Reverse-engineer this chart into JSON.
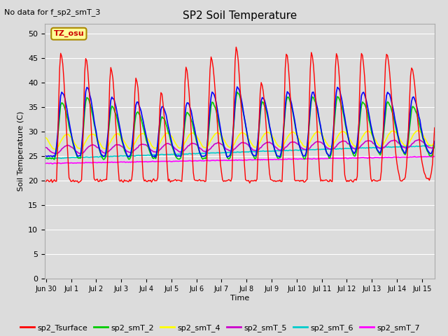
{
  "title": "SP2 Soil Temperature",
  "no_data_text": "No data for f_sp2_smT_3",
  "tz_label": "TZ_osu",
  "ylabel": "Soil Temperature (C)",
  "xlabel": "Time",
  "xlim_days": [
    -0.05,
    15.5
  ],
  "ylim": [
    0,
    52
  ],
  "yticks": [
    0,
    5,
    10,
    15,
    20,
    25,
    30,
    35,
    40,
    45,
    50
  ],
  "xtick_labels": [
    "Jun 30",
    "Jul 1",
    "Jul 2",
    "Jul 3",
    "Jul 4",
    "Jul 5",
    "Jul 6",
    "Jul 7",
    "Jul 8",
    "Jul 9",
    "Jul 10",
    "Jul 11",
    "Jul 12",
    "Jul 13",
    "Jul 14",
    "Jul 15"
  ],
  "background_color": "#dcdcdc",
  "plot_bg_color": "#dcdcdc",
  "series_colors": {
    "sp2_Tsurface": "#ff0000",
    "sp2_smT_1": "#0000ff",
    "sp2_smT_2": "#00cc00",
    "sp2_smT_4": "#ffff00",
    "sp2_smT_5": "#cc00cc",
    "sp2_smT_6": "#00cccc",
    "sp2_smT_7": "#ff00ff"
  }
}
